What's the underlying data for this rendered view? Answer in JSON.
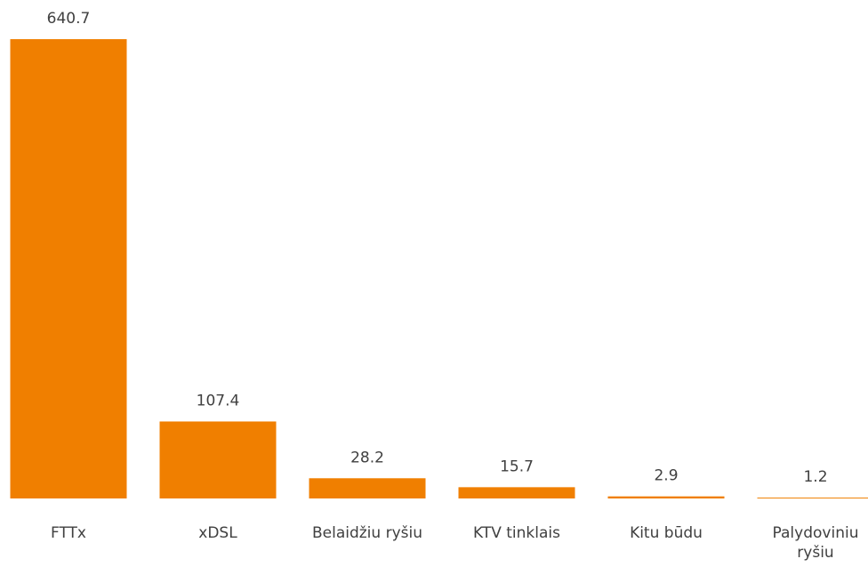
{
  "chart_data": {
    "type": "bar",
    "categories": [
      "FTTx",
      "xDSL",
      "Belaidžiu ryšiu",
      "KTV tinklais",
      "Kitu būdu",
      "Palydoviniu ryšiu"
    ],
    "values": [
      640.7,
      107.4,
      28.2,
      15.7,
      2.9,
      1.2
    ],
    "color": "#f07f00"
  }
}
